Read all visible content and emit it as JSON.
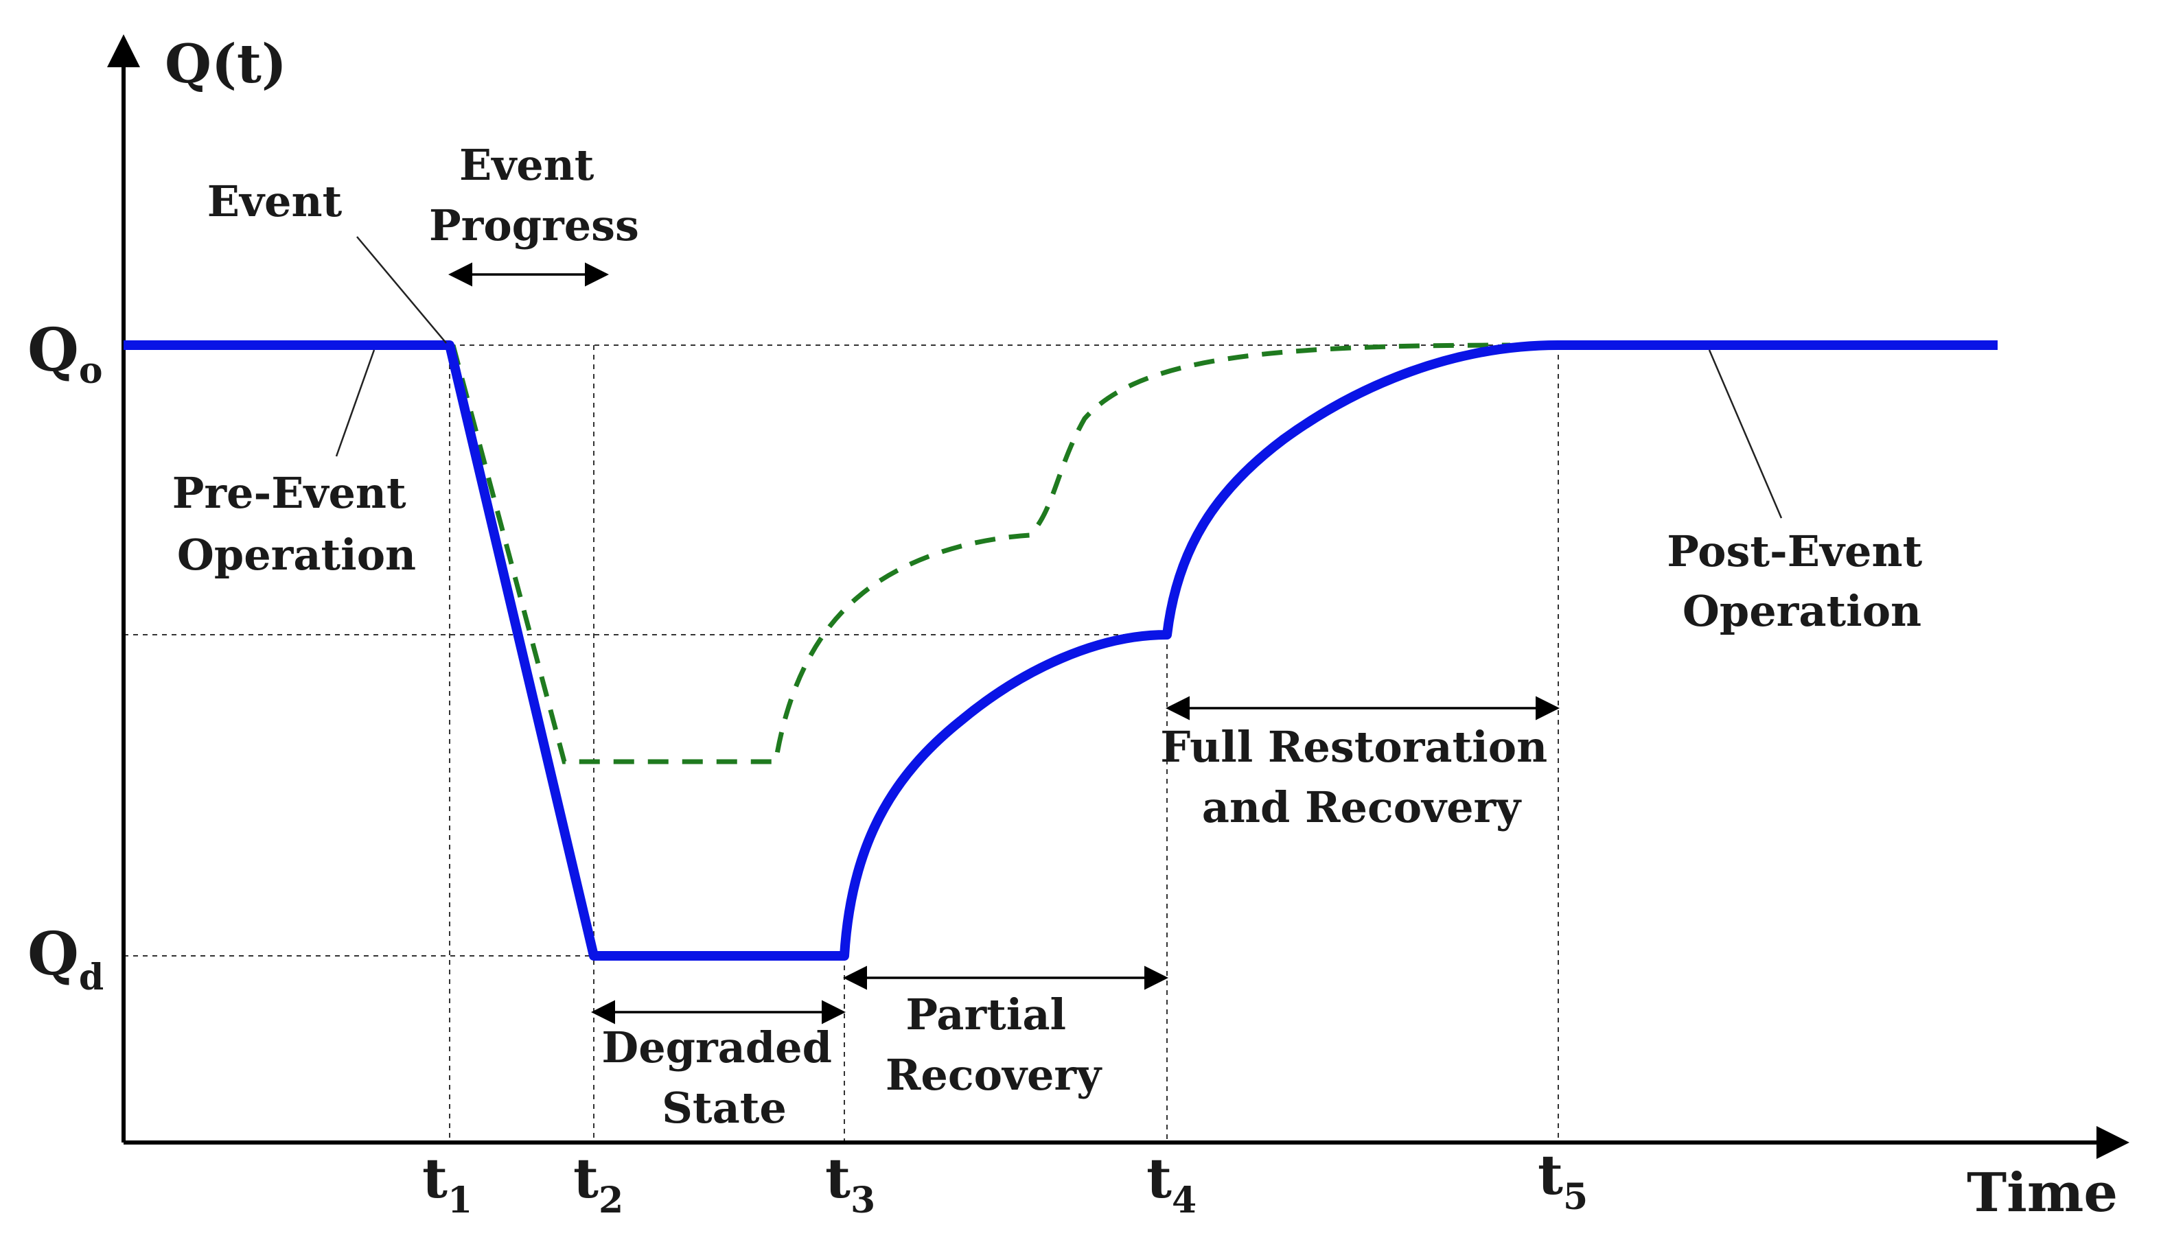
{
  "diagram": {
    "type": "resilience-curve",
    "y_axis_label": "Q(t)",
    "x_axis_label": "Time",
    "levels": {
      "nominal": {
        "base": "Q",
        "sub": "o"
      },
      "degraded": {
        "base": "Q",
        "sub": "d"
      }
    },
    "time_markers": [
      {
        "base": "t",
        "sub": "1"
      },
      {
        "base": "t",
        "sub": "2"
      },
      {
        "base": "t",
        "sub": "3"
      },
      {
        "base": "t",
        "sub": "4"
      },
      {
        "base": "t",
        "sub": "5"
      }
    ],
    "annotations": {
      "event": "Event",
      "event_progress": [
        "Event",
        "Progress"
      ],
      "pre_event": [
        "Pre-Event",
        "Operation"
      ],
      "post_event": [
        "Post-Event",
        "Operation"
      ],
      "degraded_state": [
        "Degraded",
        "State"
      ],
      "partial_recovery": [
        "Partial",
        "Recovery"
      ],
      "full_restoration": [
        "Full Restoration",
        "and Recovery"
      ]
    },
    "colors": {
      "primary_curve": "#0a14e6",
      "alternate_curve": "#1f7a1f",
      "axis": "#000000"
    }
  }
}
